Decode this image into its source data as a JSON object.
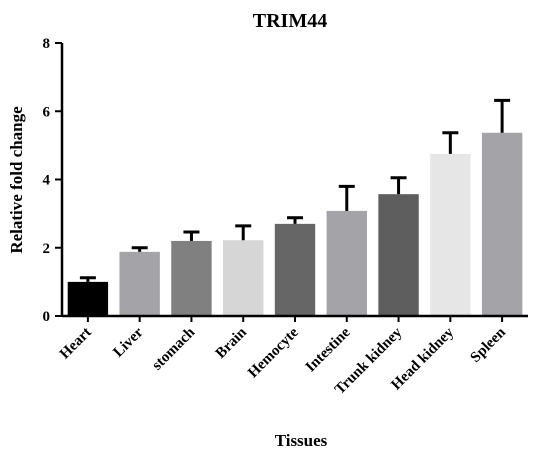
{
  "chart_data": {
    "type": "bar",
    "title": "TRIM44",
    "xlabel": "Tissues",
    "ylabel": "Relative fold change",
    "ylim": [
      0,
      8
    ],
    "yticks": [
      0,
      2,
      4,
      6,
      8
    ],
    "categories": [
      "Heart",
      "Liver",
      "stomach",
      "Brain",
      "Hemocyte",
      "Intestine",
      "Trunk kidney",
      "Head kidney",
      "Spleen"
    ],
    "values": [
      1.0,
      1.88,
      2.2,
      2.22,
      2.7,
      3.08,
      3.57,
      4.75,
      5.37
    ],
    "errors": [
      0.12,
      0.12,
      0.26,
      0.42,
      0.18,
      0.72,
      0.48,
      0.62,
      0.95
    ],
    "bar_colors": [
      "#000000",
      "#a3a3a8",
      "#808080",
      "#d6d6d6",
      "#666666",
      "#a3a3a8",
      "#5e5e5e",
      "#e6e6e6",
      "#a3a3a8"
    ],
    "grid": false,
    "legend": "none"
  }
}
